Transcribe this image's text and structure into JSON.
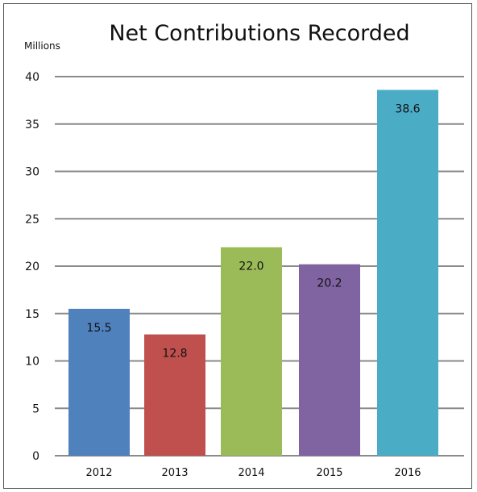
{
  "chart_data": {
    "type": "bar",
    "title": "Net Contributions Recorded",
    "unit_label": "Millions",
    "categories": [
      "2012",
      "2013",
      "2014",
      "2015",
      "2016"
    ],
    "values": [
      15.5,
      12.8,
      22.0,
      20.2,
      38.6
    ],
    "value_labels": [
      "15.5",
      "12.8",
      "22.0",
      "20.2",
      "38.6"
    ],
    "colors": [
      "#4f81bd",
      "#c0504d",
      "#9bbb59",
      "#8064a2",
      "#4bacc6"
    ],
    "ylim": [
      0,
      40
    ],
    "y_ticks": [
      "0",
      "5",
      "10",
      "15",
      "20",
      "25",
      "30",
      "35",
      "40"
    ],
    "grid": true,
    "legend": "none"
  }
}
